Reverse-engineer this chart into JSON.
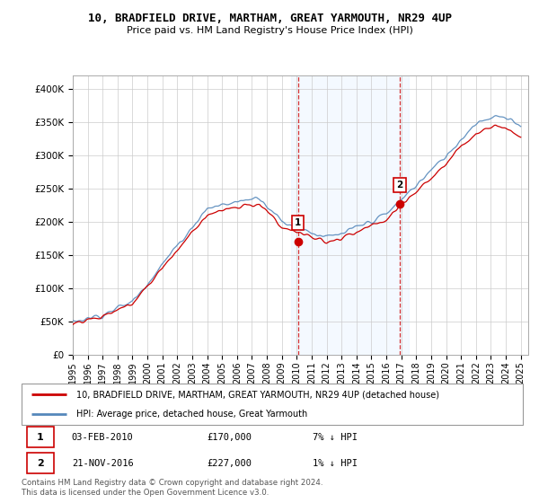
{
  "title": "10, BRADFIELD DRIVE, MARTHAM, GREAT YARMOUTH, NR29 4UP",
  "subtitle": "Price paid vs. HM Land Registry's House Price Index (HPI)",
  "ylabel_ticks": [
    "£0",
    "£50K",
    "£100K",
    "£150K",
    "£200K",
    "£250K",
    "£300K",
    "£350K",
    "£400K"
  ],
  "ytick_values": [
    0,
    50000,
    100000,
    150000,
    200000,
    250000,
    300000,
    350000,
    400000
  ],
  "ylim": [
    0,
    420000
  ],
  "xlim_start": 1995.0,
  "xlim_end": 2025.5,
  "hpi_color": "#5588bb",
  "price_color": "#cc0000",
  "shade_color": "#ddeeff",
  "transaction1_x": 2010.08,
  "transaction1_y": 170000,
  "transaction2_x": 2016.9,
  "transaction2_y": 227000,
  "shade_x1": 2009.6,
  "shade_x2": 2017.5,
  "legend_line1": "10, BRADFIELD DRIVE, MARTHAM, GREAT YARMOUTH, NR29 4UP (detached house)",
  "legend_line2": "HPI: Average price, detached house, Great Yarmouth",
  "note1_label": "1",
  "note1_date": "03-FEB-2010",
  "note1_price": "£170,000",
  "note1_hpi": "7% ↓ HPI",
  "note2_label": "2",
  "note2_date": "21-NOV-2016",
  "note2_price": "£227,000",
  "note2_hpi": "1% ↓ HPI",
  "footer": "Contains HM Land Registry data © Crown copyright and database right 2024.\nThis data is licensed under the Open Government Licence v3.0.",
  "xtick_years": [
    1995,
    1996,
    1997,
    1998,
    1999,
    2000,
    2001,
    2002,
    2003,
    2004,
    2005,
    2006,
    2007,
    2008,
    2009,
    2010,
    2011,
    2012,
    2013,
    2014,
    2015,
    2016,
    2017,
    2018,
    2019,
    2020,
    2021,
    2022,
    2023,
    2024,
    2025
  ]
}
